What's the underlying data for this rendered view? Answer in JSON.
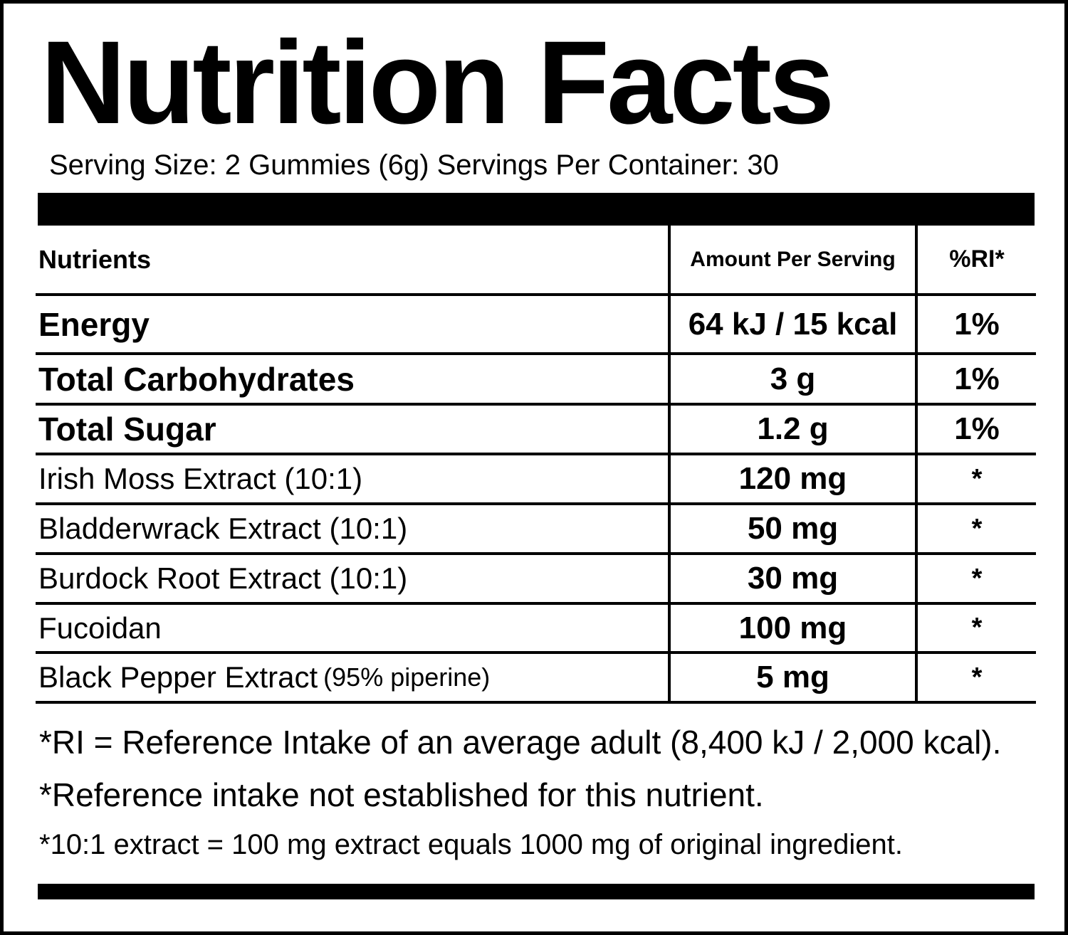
{
  "title": "Nutrition Facts",
  "serving_line": "Serving Size: 2 Gummies (6g) Servings Per Container: 30",
  "table": {
    "headers": {
      "nutrients": "Nutrients",
      "amount": "Amount Per Serving",
      "ri": "%RI*"
    },
    "rows": [
      {
        "name": "Energy",
        "note": "",
        "amount": "64 kJ / 15 kcal",
        "ri": "1%"
      },
      {
        "name": "Total Carbohydrates",
        "note": "",
        "amount": "3 g",
        "ri": "1%"
      },
      {
        "name": "Total Sugar",
        "note": "",
        "amount": "1.2 g",
        "ri": "1%"
      },
      {
        "name": "Irish Moss Extract (10:1)",
        "note": "",
        "amount": "120 mg",
        "ri": "*"
      },
      {
        "name": "Bladderwrack Extract (10:1)",
        "note": "",
        "amount": "50 mg",
        "ri": "*"
      },
      {
        "name": "Burdock Root Extract (10:1)",
        "note": "",
        "amount": "30 mg",
        "ri": "*"
      },
      {
        "name": "Fucoidan",
        "note": "",
        "amount": "100 mg",
        "ri": "*"
      },
      {
        "name": "Black Pepper Extract",
        "note": "(95% piperine)",
        "amount": "5 mg",
        "ri": "*"
      }
    ]
  },
  "footnotes": [
    "*RI = Reference Intake of an average adult (8,400 kJ / 2,000 kcal).",
    "*Reference intake not established for this nutrient.",
    "*10:1 extract = 100 mg extract equals 1000 mg of original ingredient."
  ]
}
